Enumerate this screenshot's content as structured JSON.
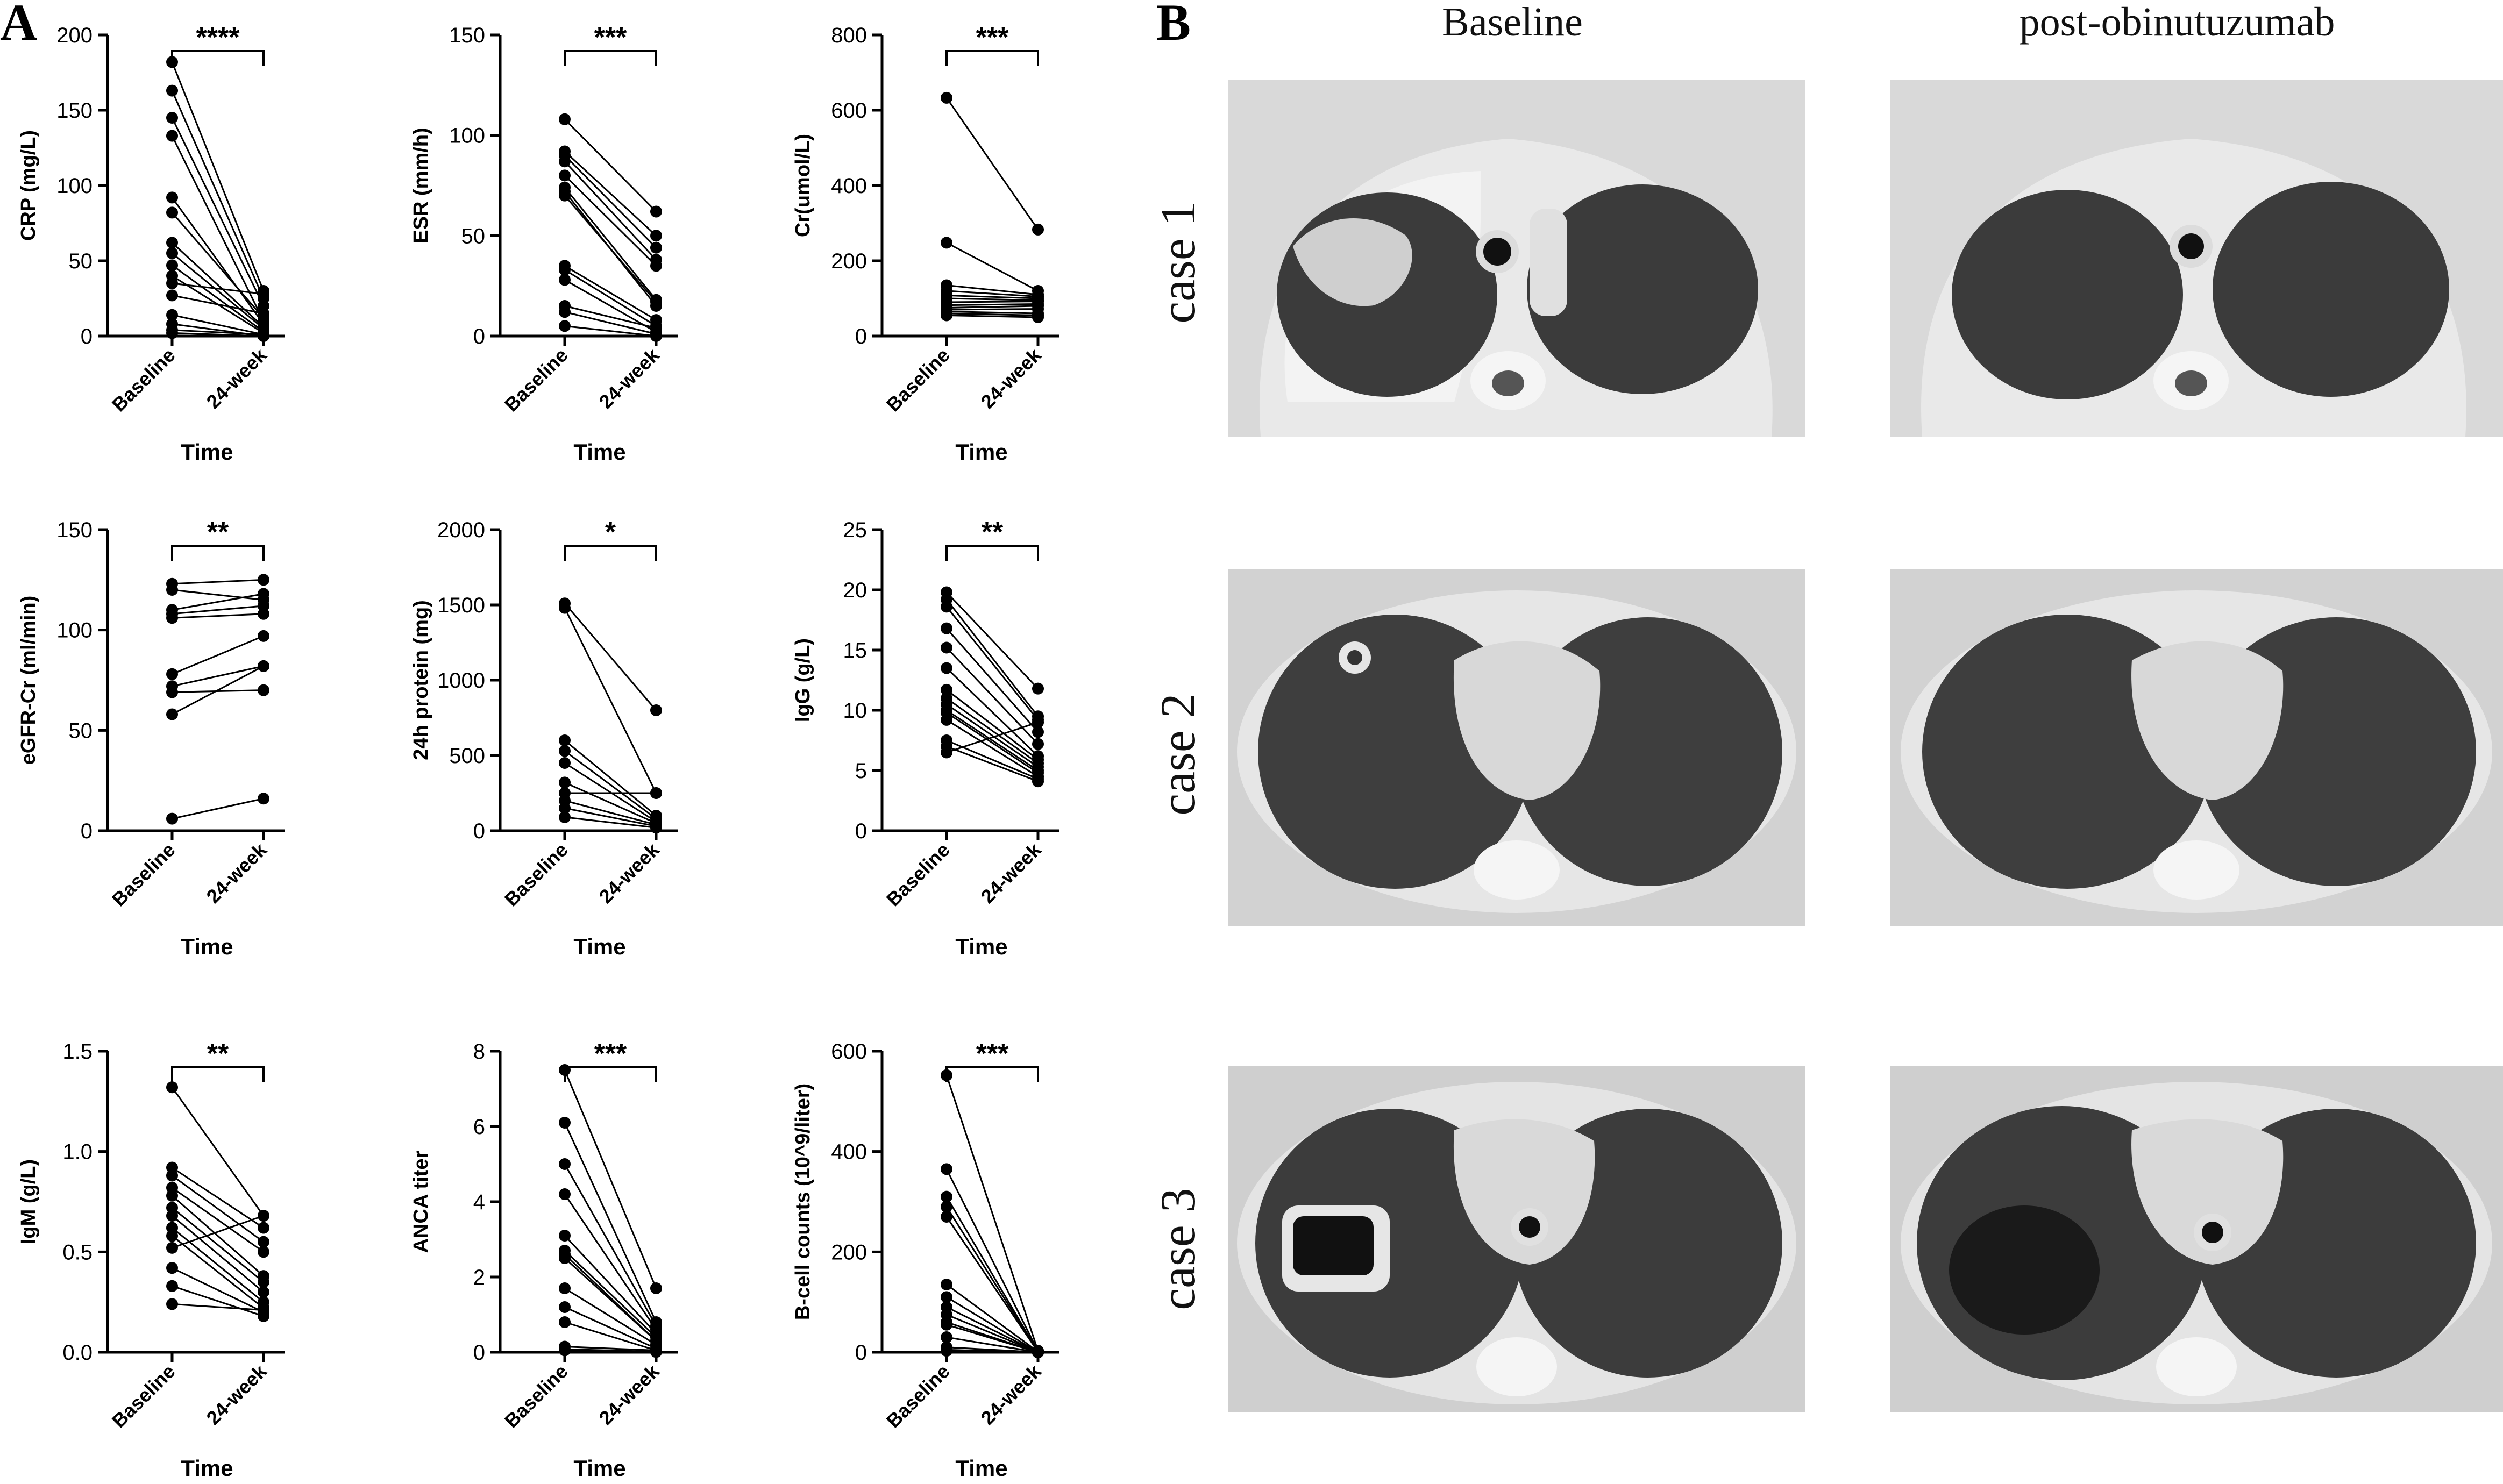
{
  "panel_labels": {
    "a": "A",
    "b": "B"
  },
  "panel_b": {
    "columns": [
      "Baseline",
      "post-obinutuzumab"
    ],
    "cases": [
      "case 1",
      "case 2",
      "case 3"
    ]
  },
  "chart_data": [
    {
      "type": "line",
      "xlabel": "Time",
      "ylabel": "CRP (mg/L)",
      "categories": [
        "Baseline",
        "24-week"
      ],
      "ylim": [
        0,
        200
      ],
      "yticks": [
        "0",
        "50",
        "100",
        "150",
        "200"
      ],
      "significance": "****",
      "pairs": [
        [
          182,
          30
        ],
        [
          163,
          25
        ],
        [
          145,
          20
        ],
        [
          133,
          10
        ],
        [
          92,
          8
        ],
        [
          82,
          12
        ],
        [
          62,
          6
        ],
        [
          55,
          5
        ],
        [
          47,
          3
        ],
        [
          40,
          2
        ],
        [
          35,
          28
        ],
        [
          27,
          15
        ],
        [
          14,
          1
        ],
        [
          8,
          0
        ],
        [
          4,
          1
        ],
        [
          2,
          0
        ]
      ]
    },
    {
      "type": "line",
      "xlabel": "Time",
      "ylabel": "ESR (mm/h)",
      "categories": [
        "Baseline",
        "24-week"
      ],
      "ylim": [
        0,
        150
      ],
      "yticks": [
        "0",
        "50",
        "100",
        "150"
      ],
      "significance": "***",
      "pairs": [
        [
          108,
          62
        ],
        [
          92,
          50
        ],
        [
          90,
          44
        ],
        [
          87,
          38
        ],
        [
          80,
          35
        ],
        [
          74,
          18
        ],
        [
          72,
          15
        ],
        [
          70,
          17
        ],
        [
          35,
          8
        ],
        [
          33,
          5
        ],
        [
          28,
          2
        ],
        [
          15,
          4
        ],
        [
          12,
          1
        ],
        [
          5,
          0
        ]
      ]
    },
    {
      "type": "line",
      "xlabel": "Time",
      "ylabel": "Cr(umol/L)",
      "categories": [
        "Baseline",
        "24-week"
      ],
      "ylim": [
        0,
        800
      ],
      "yticks": [
        "0",
        "200",
        "400",
        "600",
        "800"
      ],
      "significance": "***",
      "pairs": [
        [
          633,
          283
        ],
        [
          248,
          120
        ],
        [
          135,
          110
        ],
        [
          120,
          105
        ],
        [
          108,
          100
        ],
        [
          100,
          95
        ],
        [
          90,
          92
        ],
        [
          82,
          85
        ],
        [
          75,
          80
        ],
        [
          70,
          72
        ],
        [
          65,
          60
        ],
        [
          60,
          55
        ],
        [
          55,
          50
        ]
      ]
    },
    {
      "type": "line",
      "xlabel": "Time",
      "ylabel": "eGFR-Cr (ml/min)",
      "categories": [
        "Baseline",
        "24-week"
      ],
      "ylim": [
        0,
        150
      ],
      "yticks": [
        "0",
        "50",
        "100",
        "150"
      ],
      "significance": "**",
      "pairs": [
        [
          123,
          125
        ],
        [
          120,
          115
        ],
        [
          110,
          118
        ],
        [
          108,
          112
        ],
        [
          106,
          108
        ],
        [
          78,
          97
        ],
        [
          72,
          82
        ],
        [
          69,
          70
        ],
        [
          58,
          82
        ],
        [
          6,
          16
        ]
      ]
    },
    {
      "type": "line",
      "xlabel": "Time",
      "ylabel": "24h protein  (mg)",
      "categories": [
        "Baseline",
        "24-week"
      ],
      "ylim": [
        0,
        2000
      ],
      "yticks": [
        "0",
        "500",
        "1000",
        "1500",
        "2000"
      ],
      "significance": "*",
      "pairs": [
        [
          1510,
          800
        ],
        [
          1480,
          250
        ],
        [
          600,
          100
        ],
        [
          530,
          80
        ],
        [
          450,
          60
        ],
        [
          320,
          50
        ],
        [
          250,
          250
        ],
        [
          200,
          40
        ],
        [
          150,
          30
        ],
        [
          90,
          20
        ]
      ]
    },
    {
      "type": "line",
      "xlabel": "Time",
      "ylabel": "IgG (g/L)",
      "categories": [
        "Baseline",
        "24-week"
      ],
      "ylim": [
        0,
        25
      ],
      "yticks": [
        "0",
        "5",
        "10",
        "15",
        "20",
        "25"
      ],
      "significance": "**",
      "pairs": [
        [
          19.8,
          11.8
        ],
        [
          19.2,
          9.5
        ],
        [
          18.6,
          9.2
        ],
        [
          16.8,
          8.2
        ],
        [
          15.2,
          7.2
        ],
        [
          13.5,
          6.2
        ],
        [
          11.7,
          5.9
        ],
        [
          11,
          5.6
        ],
        [
          10.5,
          5.3
        ],
        [
          10,
          5
        ],
        [
          9.8,
          4.8
        ],
        [
          9.2,
          4.5
        ],
        [
          7.5,
          4.3
        ],
        [
          7,
          4.1
        ],
        [
          6.5,
          9
        ]
      ]
    },
    {
      "type": "line",
      "xlabel": "Time",
      "ylabel": "IgM (g/L)",
      "categories": [
        "Baseline",
        "24-week"
      ],
      "ylim": [
        0,
        1.5
      ],
      "yticks": [
        "0.0",
        "0.5",
        "1.0",
        "1.5"
      ],
      "significance": "**",
      "pairs": [
        [
          1.32,
          0.68
        ],
        [
          0.92,
          0.62
        ],
        [
          0.88,
          0.55
        ],
        [
          0.82,
          0.5
        ],
        [
          0.78,
          0.38
        ],
        [
          0.72,
          0.35
        ],
        [
          0.68,
          0.3
        ],
        [
          0.62,
          0.25
        ],
        [
          0.58,
          0.22
        ],
        [
          0.52,
          0.68
        ],
        [
          0.42,
          0.2
        ],
        [
          0.33,
          0.18
        ],
        [
          0.24,
          0.21
        ]
      ]
    },
    {
      "type": "line",
      "xlabel": "Time",
      "ylabel": "ANCA titer",
      "categories": [
        "Baseline",
        "24-week"
      ],
      "ylim": [
        0,
        8
      ],
      "yticks": [
        "0",
        "2",
        "4",
        "6",
        "8"
      ],
      "significance": "***",
      "pairs": [
        [
          7.5,
          1.7
        ],
        [
          6.1,
          0.8
        ],
        [
          5,
          0.7
        ],
        [
          4.2,
          0.6
        ],
        [
          3.1,
          0.5
        ],
        [
          2.7,
          0.4
        ],
        [
          2.6,
          0.3
        ],
        [
          2.5,
          0.3
        ],
        [
          1.7,
          0.2
        ],
        [
          1.2,
          0.1
        ],
        [
          0.8,
          0.05
        ],
        [
          0.15,
          0.05
        ],
        [
          0.08,
          0.02
        ],
        [
          0.05,
          0.01
        ]
      ]
    },
    {
      "type": "line",
      "xlabel": "Time",
      "ylabel": "B-cell counts (10^9/liter)",
      "categories": [
        "Baseline",
        "24-week"
      ],
      "ylim": [
        0,
        600
      ],
      "yticks": [
        "0",
        "200",
        "400",
        "600"
      ],
      "significance": "***",
      "pairs": [
        [
          552,
          3
        ],
        [
          365,
          2
        ],
        [
          310,
          1
        ],
        [
          290,
          1
        ],
        [
          270,
          1
        ],
        [
          135,
          1
        ],
        [
          110,
          0
        ],
        [
          90,
          0
        ],
        [
          75,
          0
        ],
        [
          60,
          0
        ],
        [
          55,
          0
        ],
        [
          30,
          0
        ],
        [
          10,
          0
        ],
        [
          5,
          0
        ],
        [
          3,
          0
        ]
      ]
    }
  ]
}
